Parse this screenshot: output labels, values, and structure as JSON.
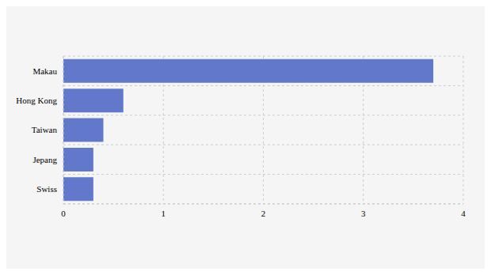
{
  "chart_data": {
    "type": "bar",
    "orientation": "horizontal",
    "categories": [
      "Makau",
      "Hong Kong",
      "Taiwan",
      "Jepang",
      "Swiss"
    ],
    "values": [
      3.7,
      0.6,
      0.4,
      0.3,
      0.3
    ],
    "color": "#6279cb",
    "xlim": [
      0,
      4
    ],
    "xticks": [
      0,
      1,
      2,
      3,
      4
    ],
    "grid": true
  }
}
